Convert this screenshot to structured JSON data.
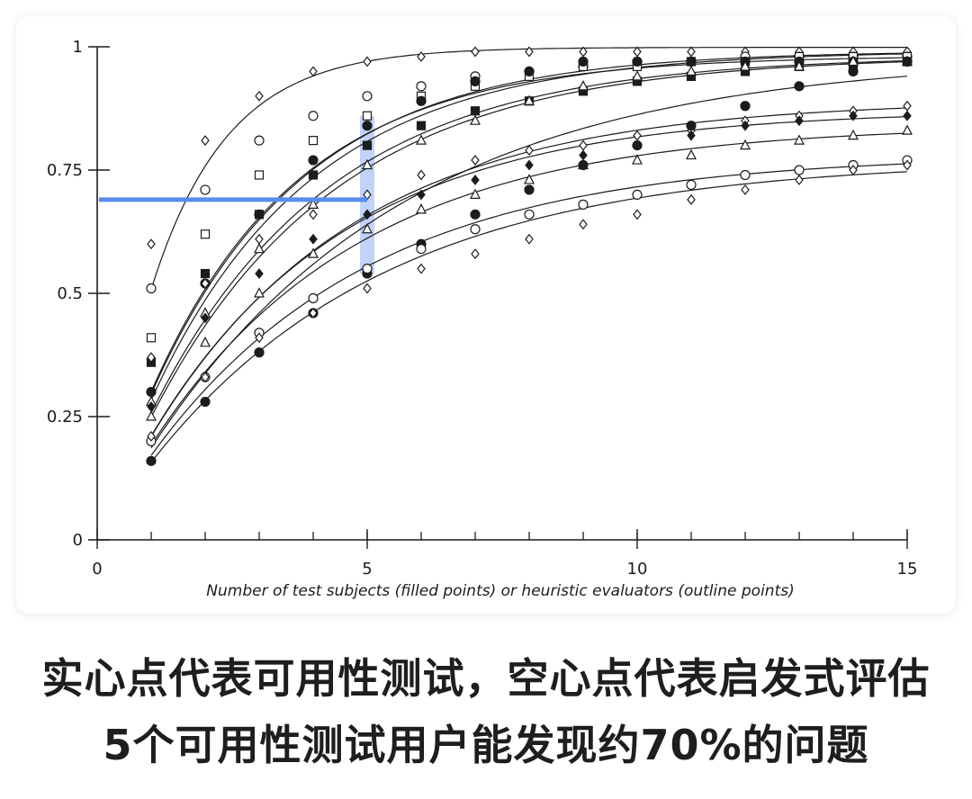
{
  "chart_data": {
    "type": "line",
    "xlabel": "Number of test subjects (filled points) or heuristic evaluators (outline points)",
    "ylabel": "",
    "xlim": [
      0,
      15
    ],
    "ylim": [
      0,
      1
    ],
    "x_ticks": [
      0,
      5,
      10,
      15
    ],
    "y_ticks": [
      0,
      0.25,
      0.5,
      0.75,
      1
    ],
    "y_tick_labels": [
      "0",
      "0.25",
      "0.5",
      "0.75",
      "1"
    ],
    "x_tick_labels": [
      "0",
      "5",
      "10",
      "15"
    ],
    "grid": false,
    "legend": "none",
    "highlight": {
      "x": 5,
      "y": 0.69,
      "band_y": [
        0.54,
        0.86
      ],
      "color": "#5b8cf0"
    },
    "series": [
      {
        "marker": "diamond-open",
        "values": [
          [
            1,
            0.6
          ],
          [
            2,
            0.81
          ],
          [
            3,
            0.9
          ],
          [
            4,
            0.95
          ],
          [
            5,
            0.97
          ],
          [
            6,
            0.98
          ],
          [
            7,
            0.99
          ],
          [
            8,
            0.99
          ],
          [
            9,
            0.99
          ],
          [
            10,
            0.99
          ],
          [
            11,
            0.99
          ],
          [
            12,
            0.99
          ],
          [
            13,
            0.99
          ],
          [
            14,
            0.99
          ],
          [
            15,
            0.99
          ]
        ]
      },
      {
        "marker": "circle-open",
        "values": [
          [
            1,
            0.51
          ],
          [
            2,
            0.71
          ],
          [
            3,
            0.81
          ],
          [
            4,
            0.86
          ],
          [
            5,
            0.9
          ],
          [
            6,
            0.92
          ],
          [
            7,
            0.94
          ],
          [
            8,
            0.95
          ],
          [
            9,
            0.96
          ],
          [
            10,
            0.97
          ],
          [
            11,
            0.97
          ],
          [
            12,
            0.98
          ],
          [
            13,
            0.98
          ],
          [
            14,
            0.98
          ],
          [
            15,
            0.98
          ]
        ]
      },
      {
        "marker": "square-open",
        "values": [
          [
            1,
            0.41
          ],
          [
            2,
            0.62
          ],
          [
            3,
            0.74
          ],
          [
            4,
            0.81
          ],
          [
            5,
            0.86
          ],
          [
            6,
            0.9
          ],
          [
            7,
            0.92
          ],
          [
            8,
            0.94
          ],
          [
            9,
            0.96
          ],
          [
            10,
            0.96
          ],
          [
            11,
            0.97
          ],
          [
            12,
            0.97
          ],
          [
            13,
            0.98
          ],
          [
            14,
            0.98
          ],
          [
            15,
            0.98
          ]
        ]
      },
      {
        "marker": "circle-filled",
        "values": [
          [
            1,
            0.3
          ],
          [
            2,
            0.52
          ],
          [
            3,
            0.66
          ],
          [
            4,
            0.77
          ],
          [
            5,
            0.84
          ],
          [
            6,
            0.89
          ],
          [
            7,
            0.93
          ],
          [
            8,
            0.95
          ],
          [
            9,
            0.97
          ],
          [
            10,
            0.97
          ],
          [
            11,
            0.97
          ],
          [
            12,
            0.97
          ],
          [
            13,
            0.97
          ],
          [
            14,
            0.97
          ],
          [
            15,
            0.97
          ]
        ]
      },
      {
        "marker": "square-filled",
        "values": [
          [
            1,
            0.36
          ],
          [
            2,
            0.54
          ],
          [
            3,
            0.66
          ],
          [
            4,
            0.74
          ],
          [
            5,
            0.8
          ],
          [
            6,
            0.84
          ],
          [
            7,
            0.87
          ],
          [
            8,
            0.89
          ],
          [
            9,
            0.91
          ],
          [
            10,
            0.93
          ],
          [
            11,
            0.94
          ],
          [
            12,
            0.95
          ],
          [
            13,
            0.96
          ],
          [
            14,
            0.96
          ],
          [
            15,
            0.97
          ]
        ]
      },
      {
        "marker": "triangle-open",
        "values": [
          [
            1,
            0.28
          ],
          [
            2,
            0.46
          ],
          [
            3,
            0.59
          ],
          [
            4,
            0.68
          ],
          [
            5,
            0.76
          ],
          [
            6,
            0.81
          ],
          [
            7,
            0.85
          ],
          [
            8,
            0.89
          ],
          [
            9,
            0.92
          ],
          [
            10,
            0.94
          ],
          [
            11,
            0.95
          ],
          [
            12,
            0.96
          ],
          [
            13,
            0.96
          ],
          [
            14,
            0.97
          ],
          [
            15,
            0.97
          ]
        ]
      },
      {
        "marker": "diamond-open",
        "values": [
          [
            1,
            0.37
          ],
          [
            2,
            0.52
          ],
          [
            3,
            0.61
          ],
          [
            4,
            0.66
          ],
          [
            5,
            0.7
          ],
          [
            6,
            0.74
          ],
          [
            7,
            0.77
          ],
          [
            8,
            0.79
          ],
          [
            9,
            0.8
          ],
          [
            10,
            0.82
          ],
          [
            11,
            0.83
          ],
          [
            12,
            0.85
          ],
          [
            13,
            0.86
          ],
          [
            14,
            0.87
          ],
          [
            15,
            0.88
          ]
        ]
      },
      {
        "marker": "diamond-filled",
        "values": [
          [
            1,
            0.27
          ],
          [
            2,
            0.45
          ],
          [
            3,
            0.54
          ],
          [
            4,
            0.61
          ],
          [
            5,
            0.66
          ],
          [
            6,
            0.7
          ],
          [
            7,
            0.73
          ],
          [
            8,
            0.76
          ],
          [
            9,
            0.78
          ],
          [
            10,
            0.8
          ],
          [
            11,
            0.82
          ],
          [
            12,
            0.84
          ],
          [
            13,
            0.85
          ],
          [
            14,
            0.86
          ],
          [
            15,
            0.86
          ]
        ]
      },
      {
        "marker": "triangle-open",
        "values": [
          [
            1,
            0.25
          ],
          [
            2,
            0.4
          ],
          [
            3,
            0.5
          ],
          [
            4,
            0.58
          ],
          [
            5,
            0.63
          ],
          [
            6,
            0.67
          ],
          [
            7,
            0.7
          ],
          [
            8,
            0.73
          ],
          [
            9,
            0.76
          ],
          [
            10,
            0.77
          ],
          [
            11,
            0.78
          ],
          [
            12,
            0.8
          ],
          [
            13,
            0.81
          ],
          [
            14,
            0.82
          ],
          [
            15,
            0.83
          ]
        ]
      },
      {
        "marker": "circle-filled",
        "values": [
          [
            1,
            0.16
          ],
          [
            2,
            0.28
          ],
          [
            3,
            0.38
          ],
          [
            4,
            0.46
          ],
          [
            5,
            0.54
          ],
          [
            6,
            0.6
          ],
          [
            7,
            0.66
          ],
          [
            8,
            0.71
          ],
          [
            9,
            0.76
          ],
          [
            10,
            0.8
          ],
          [
            11,
            0.84
          ],
          [
            12,
            0.88
          ],
          [
            13,
            0.92
          ],
          [
            14,
            0.95
          ],
          [
            15,
            0.97
          ]
        ]
      },
      {
        "marker": "circle-open",
        "values": [
          [
            1,
            0.2
          ],
          [
            2,
            0.33
          ],
          [
            3,
            0.42
          ],
          [
            4,
            0.49
          ],
          [
            5,
            0.55
          ],
          [
            6,
            0.59
          ],
          [
            7,
            0.63
          ],
          [
            8,
            0.66
          ],
          [
            9,
            0.68
          ],
          [
            10,
            0.7
          ],
          [
            11,
            0.72
          ],
          [
            12,
            0.74
          ],
          [
            13,
            0.75
          ],
          [
            14,
            0.76
          ],
          [
            15,
            0.77
          ]
        ]
      },
      {
        "marker": "diamond-open",
        "values": [
          [
            1,
            0.21
          ],
          [
            2,
            0.33
          ],
          [
            3,
            0.41
          ],
          [
            4,
            0.46
          ],
          [
            5,
            0.51
          ],
          [
            6,
            0.55
          ],
          [
            7,
            0.58
          ],
          [
            8,
            0.61
          ],
          [
            9,
            0.64
          ],
          [
            10,
            0.66
          ],
          [
            11,
            0.69
          ],
          [
            12,
            0.71
          ],
          [
            13,
            0.73
          ],
          [
            14,
            0.75
          ],
          [
            15,
            0.76
          ]
        ]
      }
    ]
  },
  "captions": {
    "line1": "实心点代表可用性测试，空心点代表启发式评估",
    "line2": "5个可用性测试用户能发现约70%的问题"
  }
}
